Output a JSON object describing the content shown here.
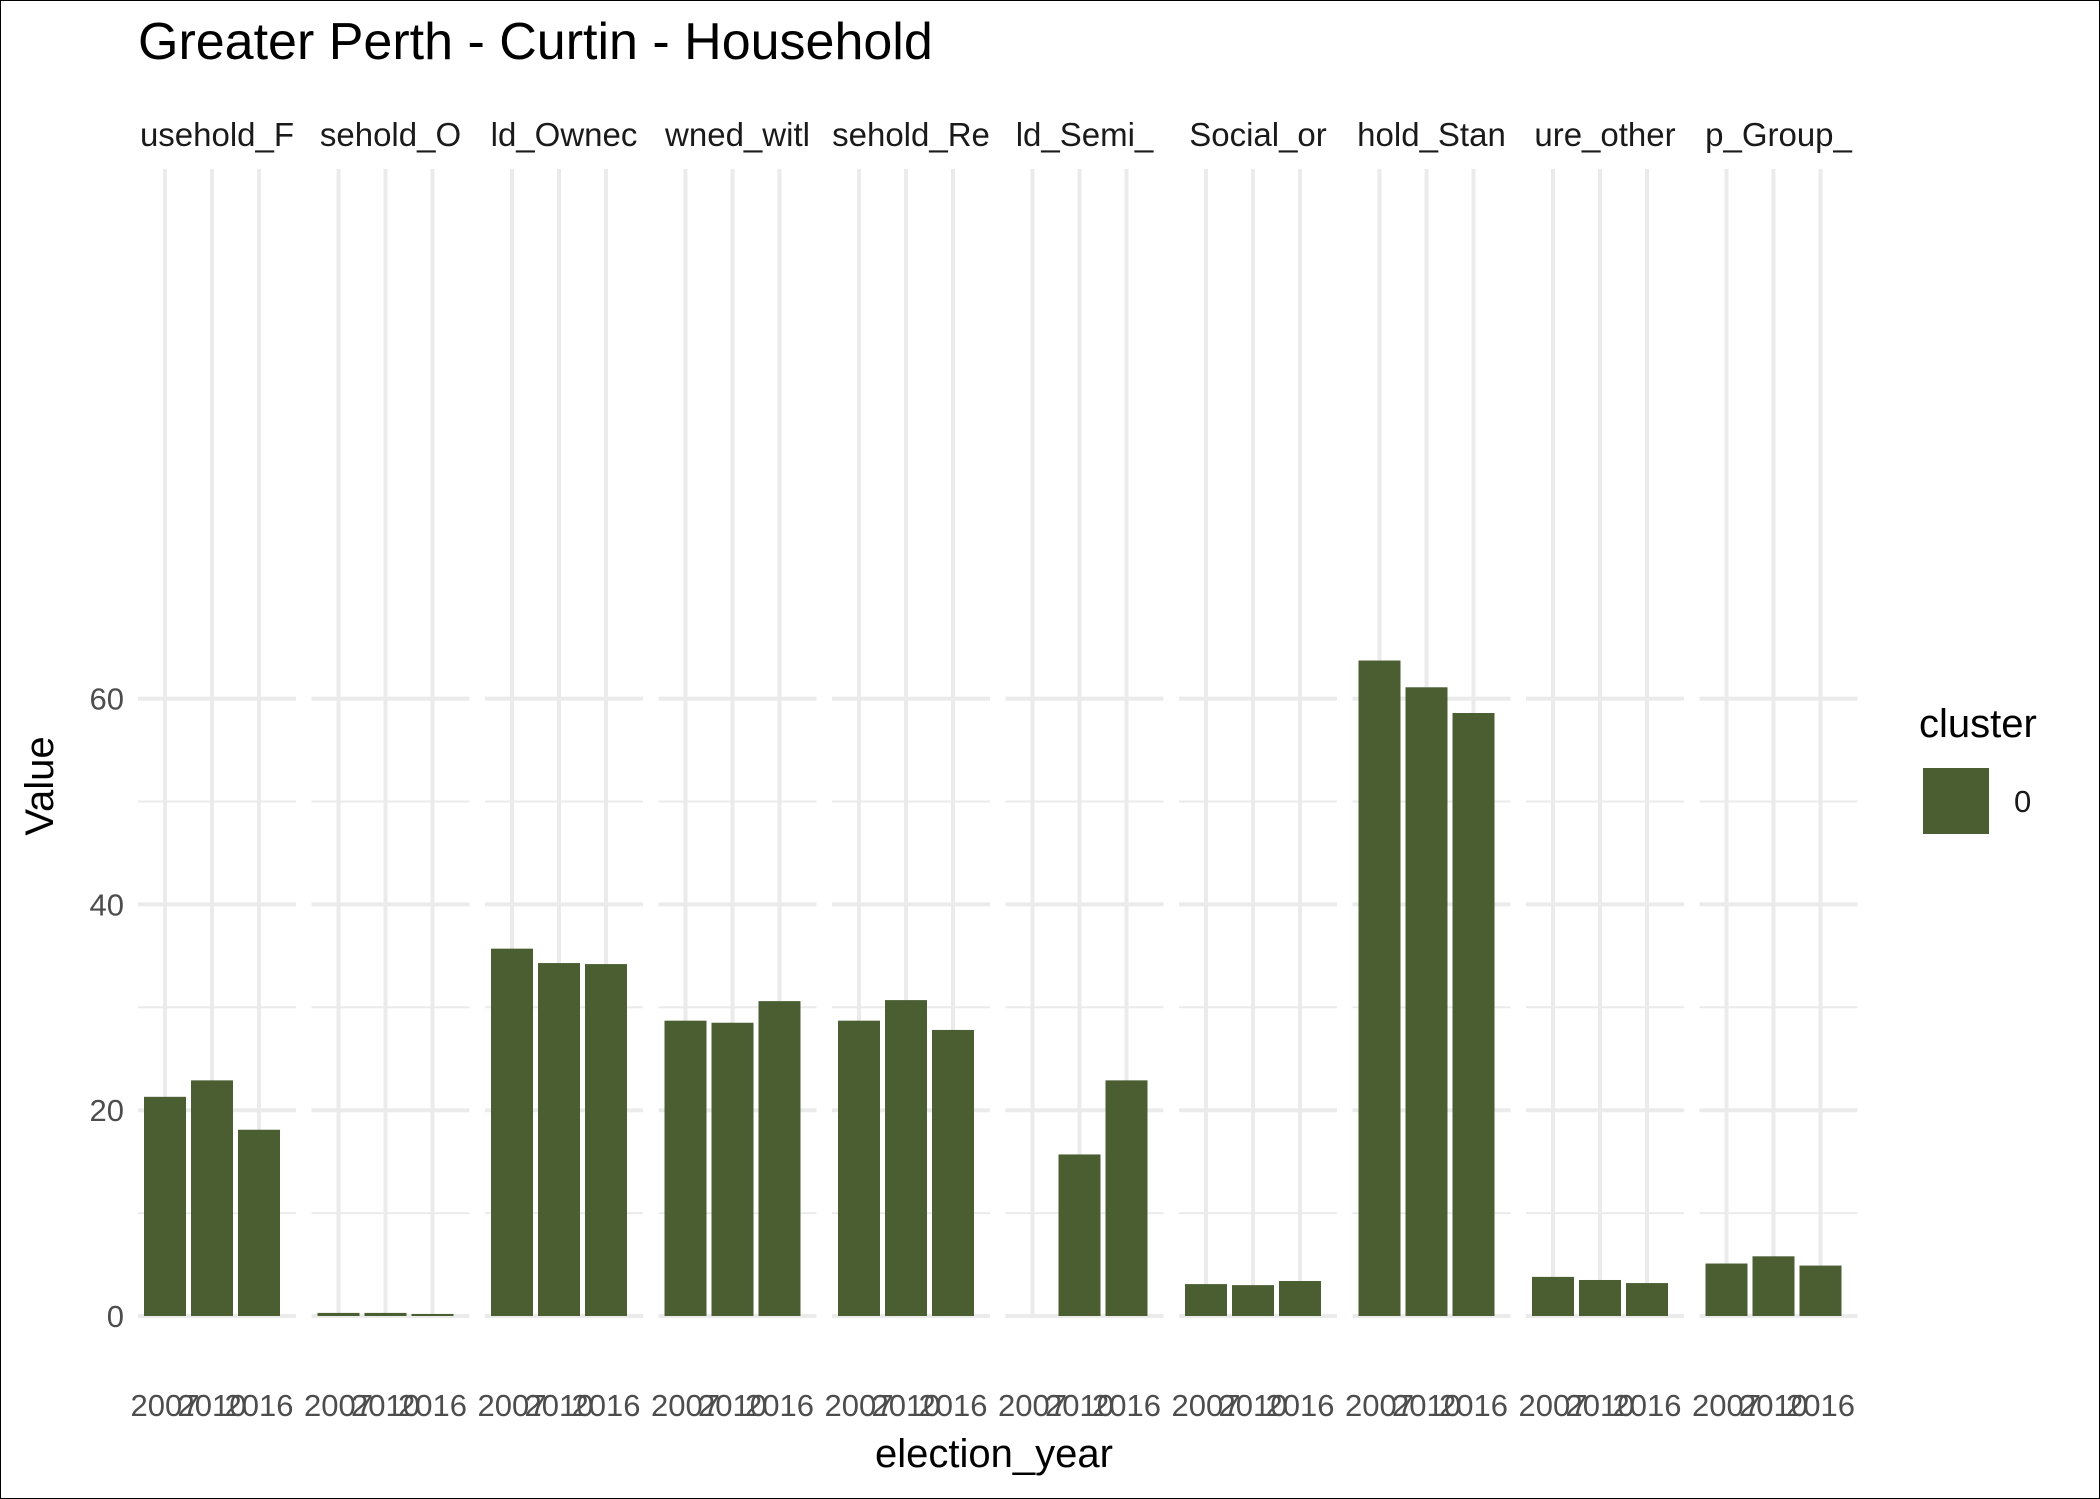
{
  "chart_data": {
    "type": "bar",
    "title": "Greater Perth - Curtin - Household",
    "xlabel": "election_year",
    "ylabel": "Value",
    "ylim": [
      0,
      67
    ],
    "yticks": [
      0,
      20,
      40,
      60
    ],
    "grid": true,
    "legend": {
      "title": "cluster",
      "position": "right",
      "entries": [
        {
          "label": "0",
          "color": "#4a5e32"
        }
      ]
    },
    "bar_color": "#4a5e32",
    "categories": [
      "2007",
      "2010",
      "2016"
    ],
    "x_tick_labels": [
      "2007",
      "2010",
      "2016"
    ],
    "facets": [
      {
        "label": "usehold_F",
        "values": [
          21.3,
          22.9,
          18.1
        ]
      },
      {
        "label": "sehold_O",
        "values": [
          0.3,
          0.3,
          0.2
        ]
      },
      {
        "label": "ld_Ownec",
        "values": [
          35.7,
          34.3,
          34.2
        ]
      },
      {
        "label": "wned_witl",
        "values": [
          28.7,
          28.5,
          30.6
        ]
      },
      {
        "label": "sehold_Re",
        "values": [
          28.7,
          30.7,
          27.8
        ]
      },
      {
        "label": "ld_Semi_",
        "values": [
          null,
          15.7,
          22.9
        ]
      },
      {
        "label": "Social_or",
        "values": [
          3.1,
          3.0,
          3.4
        ]
      },
      {
        "label": "hold_Stan",
        "values": [
          63.7,
          61.1,
          58.6
        ]
      },
      {
        "label": "ure_other",
        "values": [
          3.8,
          3.5,
          3.2
        ]
      },
      {
        "label": "p_Group_",
        "values": [
          5.1,
          5.8,
          4.9
        ]
      }
    ]
  }
}
